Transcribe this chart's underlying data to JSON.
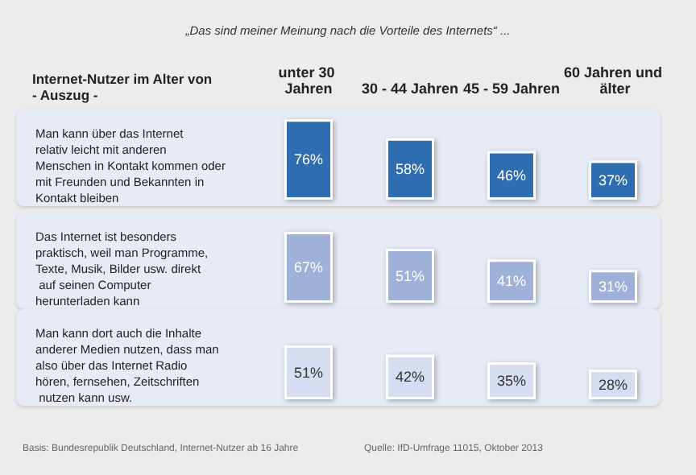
{
  "chart_data": [
    {
      "type": "bar",
      "title": "„Das sind meiner Meinung nach die Vorteile des Internets“ ...",
      "xlabel": "Internet-Nutzer im Alter von\n- Auszug -",
      "ylabel": "Man kann über das Internet relativ leicht mit anderen Menschen in Kontakt kommen oder mit Freunden und Bekannten in Kontakt bleiben",
      "categories": [
        "unter 30 Jahren",
        "30 - 44 Jahren",
        "45 - 59 Jahren",
        "60 Jahren und älter"
      ],
      "values": [
        76,
        58,
        46,
        37
      ],
      "value_labels": [
        "76%",
        "58%",
        "46%",
        "37%"
      ],
      "color": "#2e6eb0",
      "tick_labels": "x"
    },
    {
      "type": "bar",
      "ylabel": "Das Internet ist besonders praktisch, weil man Programme, Texte, Musik, Bilder usw. direkt auf seinen Computer herunterladen kann",
      "categories": [
        "unter 30 Jahren",
        "30 - 44 Jahren",
        "45 - 59 Jahren",
        "60 Jahren und älter"
      ],
      "values": [
        67,
        51,
        41,
        31
      ],
      "value_labels": [
        "67%",
        "51%",
        "41%",
        "31%"
      ],
      "color": "#9fb1d9",
      "tick_labels": false
    },
    {
      "type": "bar",
      "ylabel": "Man kann dort auch die Inhalte anderer Medien nutzen, dass man also über das Internet Radio hören, fernsehen, Zeitschriften nutzen kann usw.",
      "categories": [
        "unter 30 Jahren",
        "30 - 44 Jahren",
        "45 - 59 Jahren",
        "60 Jahren und älter"
      ],
      "values": [
        51,
        42,
        35,
        28
      ],
      "value_labels": [
        "51%",
        "42%",
        "35%",
        "28%"
      ],
      "color": "#d6ddf1",
      "tick_labels": false,
      "annotations": [
        "Basis: Bundesrepublik Deutschland, Internet-Nutzer ab 16 Jahre",
        "Quelle: IfD-Umfrage 11015, Oktober 2013"
      ]
    }
  ]
}
